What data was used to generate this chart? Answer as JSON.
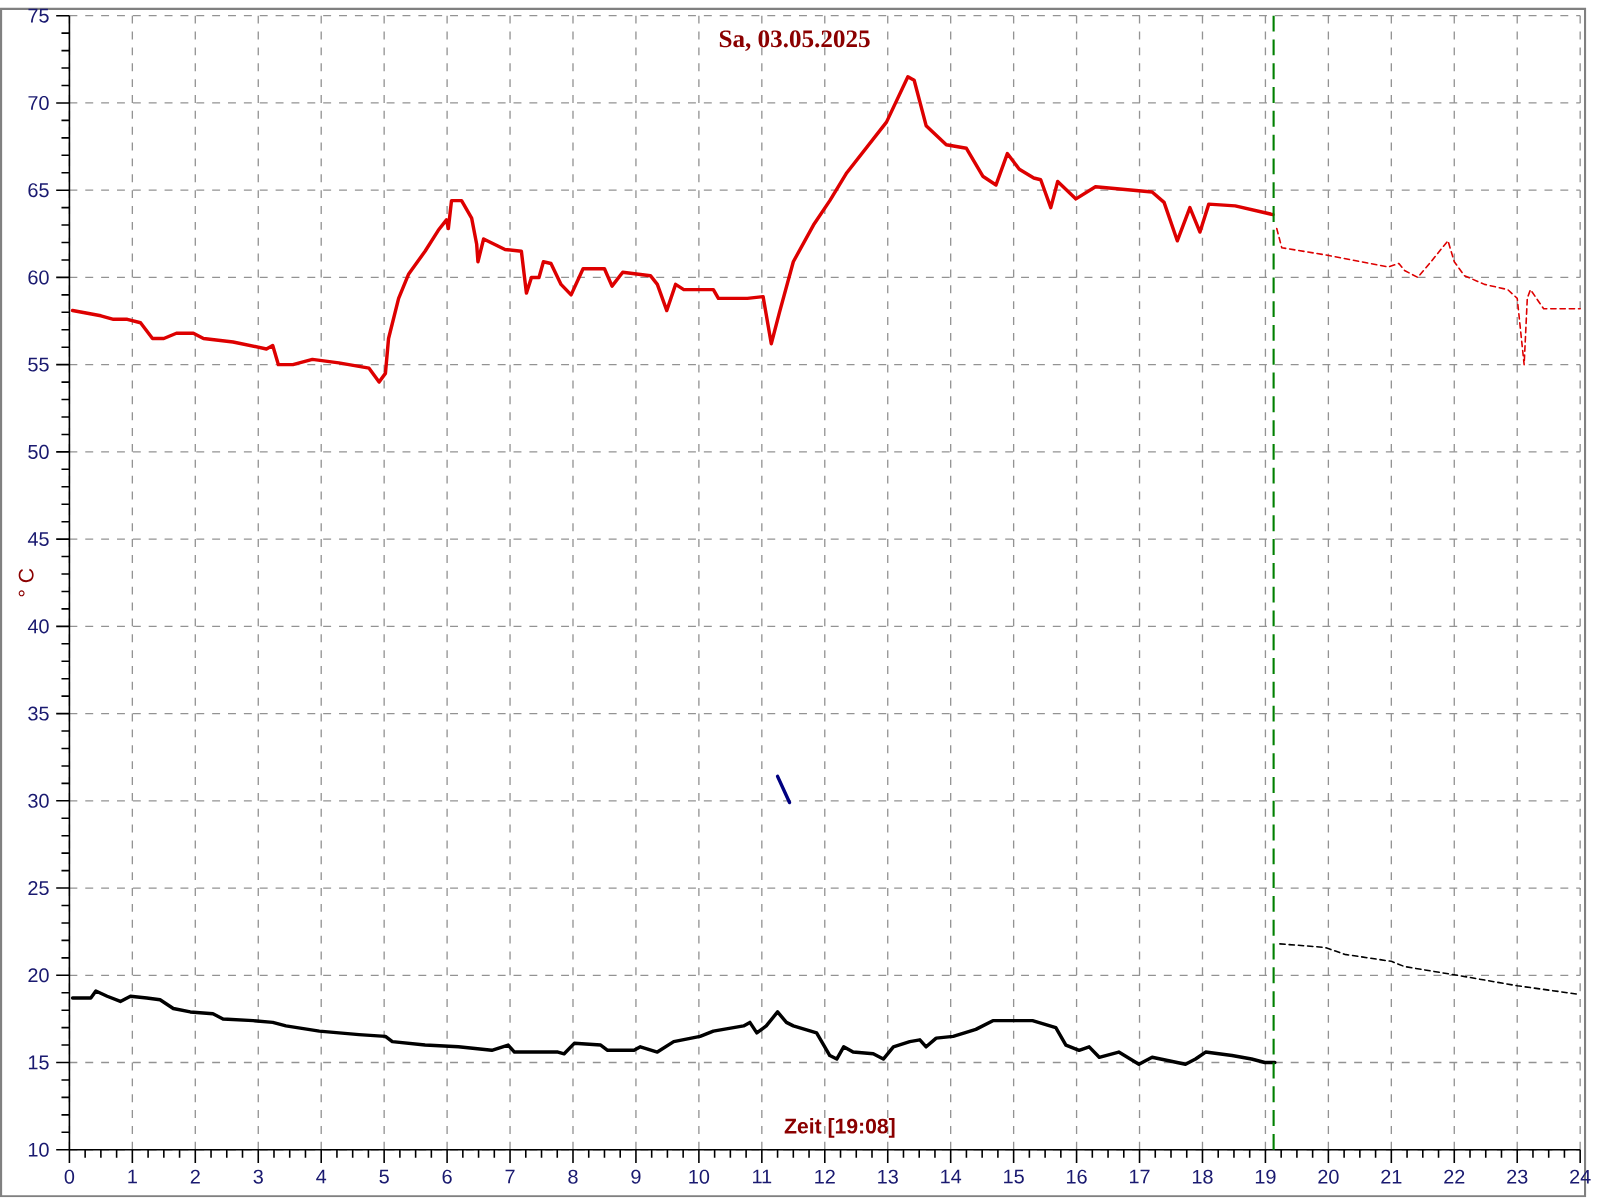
{
  "chart_data": {
    "type": "line",
    "title": "Sa, 03.05.2025",
    "xlabel": "Zeit [19:08]",
    "ylabel": "° C",
    "xlim": [
      0,
      24
    ],
    "ylim": [
      10,
      75
    ],
    "xticks": [
      0,
      1,
      2,
      3,
      4,
      5,
      6,
      7,
      8,
      9,
      10,
      11,
      12,
      13,
      14,
      15,
      16,
      17,
      18,
      19,
      20,
      21,
      22,
      23,
      24
    ],
    "yticks": [
      10,
      15,
      20,
      25,
      30,
      35,
      40,
      45,
      50,
      55,
      60,
      65,
      70,
      75
    ],
    "grid": true,
    "ref_lines": [
      {
        "axis": "x",
        "value": 19.13,
        "color": "#008000",
        "line_style": "dashed"
      }
    ],
    "series": [
      {
        "color": "#dd0000",
        "line_style": "solid",
        "x": [
          0.05,
          0.5,
          0.7,
          0.92,
          1.13,
          1.32,
          1.5,
          1.7,
          1.97,
          2.13,
          2.6,
          3.13,
          3.23,
          3.32,
          3.55,
          3.86,
          4.28,
          4.76,
          4.92,
          5.02,
          5.07,
          5.23,
          5.39,
          5.65,
          5.86,
          5.99,
          6.02,
          6.07,
          6.23,
          6.39,
          6.47,
          6.49,
          6.58,
          6.92,
          7.18,
          7.26,
          7.34,
          7.46,
          7.53,
          7.65,
          7.81,
          7.97,
          8.16,
          8.5,
          8.62,
          8.79,
          9.23,
          9.34,
          9.49,
          9.63,
          9.76,
          10.23,
          10.31,
          10.77,
          11.02,
          11.15,
          11.28,
          11.5,
          11.82,
          12.08,
          12.35,
          12.98,
          13.32,
          13.42,
          13.61,
          13.93,
          14.25,
          14.51,
          14.72,
          14.9,
          15.09,
          15.32,
          15.43,
          15.59,
          15.7,
          15.99,
          16.3,
          17.2,
          17.39,
          17.6,
          17.8,
          17.96,
          18.1,
          18.52,
          19.12
        ],
        "values": [
          58.1,
          57.8,
          57.6,
          57.6,
          57.4,
          56.5,
          56.5,
          56.8,
          56.8,
          56.5,
          56.3,
          55.9,
          56.1,
          55.0,
          55.0,
          55.3,
          55.1,
          54.8,
          54.0,
          54.5,
          56.5,
          58.8,
          60.2,
          61.5,
          62.7,
          63.3,
          62.8,
          64.4,
          64.4,
          63.4,
          61.9,
          60.9,
          62.2,
          61.6,
          61.5,
          59.1,
          60.0,
          60.0,
          60.9,
          60.8,
          59.6,
          59.0,
          60.5,
          60.5,
          59.5,
          60.3,
          60.1,
          59.6,
          58.1,
          59.6,
          59.3,
          59.3,
          58.8,
          58.8,
          58.9,
          56.2,
          58.0,
          60.9,
          63.0,
          64.4,
          66.0,
          68.9,
          71.5,
          71.3,
          68.7,
          67.6,
          67.4,
          65.8,
          65.3,
          67.1,
          66.2,
          65.7,
          65.6,
          64.0,
          65.5,
          64.5,
          65.2,
          64.9,
          64.3,
          62.1,
          64.0,
          62.6,
          64.2,
          64.1,
          63.6
        ]
      },
      {
        "color": "#dd0000",
        "line_style": "dashed",
        "x": [
          19.18,
          19.26,
          19.94,
          20.95,
          21.12,
          21.21,
          21.42,
          21.63,
          21.9,
          22.0,
          22.16,
          22.48,
          22.85,
          23.0,
          23.11,
          23.16,
          23.21,
          23.42,
          24
        ],
        "values": [
          62.8,
          61.7,
          61.3,
          60.6,
          60.8,
          60.4,
          60.0,
          60.9,
          62.1,
          60.9,
          60.1,
          59.6,
          59.3,
          58.8,
          55.0,
          58.8,
          59.3,
          58.2,
          58.2
        ]
      },
      {
        "color": "#000000",
        "line_style": "solid",
        "x": [
          0.05,
          0.34,
          0.42,
          0.6,
          0.81,
          0.97,
          1.23,
          1.44,
          1.65,
          1.92,
          2.28,
          2.44,
          2.92,
          3.23,
          3.44,
          3.97,
          4.6,
          5.02,
          5.13,
          5.65,
          6.18,
          6.71,
          6.97,
          7.07,
          7.76,
          7.86,
          8.02,
          8.44,
          8.55,
          8.97,
          9.07,
          9.34,
          9.6,
          10.02,
          10.23,
          10.71,
          10.81,
          10.92,
          11.07,
          11.25,
          11.39,
          11.5,
          11.87,
          12.08,
          12.19,
          12.3,
          12.45,
          12.77,
          12.93,
          13.09,
          13.35,
          13.51,
          13.61,
          13.77,
          14.04,
          14.4,
          14.67,
          15.3,
          15.67,
          15.83,
          16.04,
          16.2,
          16.36,
          16.67,
          16.99,
          17.2,
          17.73,
          17.89,
          18.05,
          18.47,
          18.78,
          18.99,
          19.15
        ],
        "values": [
          18.7,
          18.7,
          19.1,
          18.8,
          18.5,
          18.8,
          18.7,
          18.6,
          18.1,
          17.9,
          17.8,
          17.5,
          17.4,
          17.3,
          17.1,
          16.8,
          16.6,
          16.5,
          16.2,
          16.0,
          15.9,
          15.7,
          16.0,
          15.6,
          15.6,
          15.5,
          16.1,
          16.0,
          15.7,
          15.7,
          15.9,
          15.6,
          16.2,
          16.5,
          16.8,
          17.1,
          17.3,
          16.7,
          17.1,
          17.9,
          17.3,
          17.1,
          16.7,
          15.4,
          15.2,
          15.9,
          15.6,
          15.5,
          15.2,
          15.9,
          16.2,
          16.3,
          15.9,
          16.4,
          16.5,
          16.9,
          17.4,
          17.4,
          17.0,
          16.0,
          15.7,
          15.9,
          15.3,
          15.6,
          14.9,
          15.3,
          14.9,
          15.2,
          15.6,
          15.4,
          15.2,
          15.0,
          15.0
        ]
      },
      {
        "color": "#000000",
        "line_style": "dashed",
        "x": [
          19.23,
          19.94,
          20.26,
          21.0,
          21.21,
          22.05,
          23.0,
          24
        ],
        "values": [
          21.8,
          21.6,
          21.2,
          20.8,
          20.5,
          20.0,
          19.4,
          18.9
        ]
      },
      {
        "color": "#000080",
        "line_style": "solid",
        "x": [
          11.25,
          11.44
        ],
        "values": [
          31.4,
          29.9
        ]
      }
    ]
  }
}
